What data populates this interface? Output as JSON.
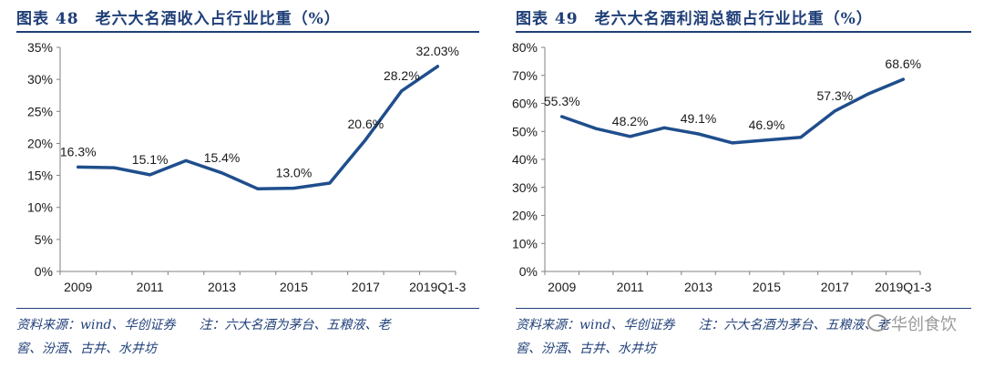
{
  "charts": [
    {
      "title": "图表 48　老六大名酒收入占行业比重（%）",
      "source": "资料来源：wind、华创证券",
      "note_line1": "注：六大名酒为茅台、五粮液、老",
      "note_line2": "窖、汾酒、古井、水井坊"
    },
    {
      "title": "图表 49　老六大名酒利润总额占行业比重（%）",
      "source": "资料来源：wind、华创证券",
      "note_line1": "注：六大名酒为茅台、五粮液、老",
      "note_line2": "窖、汾酒、古井、水井坊"
    }
  ],
  "watermark": "华创食饮",
  "colors": {
    "line": "#1f4e8c",
    "title": "#1f3f78",
    "axis": "#808080"
  },
  "chart_data": [
    {
      "type": "line",
      "title": "图表 48　老六大名酒收入占行业比重（%）",
      "categories": [
        "2009",
        "2010",
        "2011",
        "2012",
        "2013",
        "2014",
        "2015",
        "2016",
        "2017",
        "2018",
        "2019Q1-3"
      ],
      "tick_labels": [
        "2009",
        "2011",
        "2013",
        "2015",
        "2017",
        "2019Q1-3"
      ],
      "values": [
        16.3,
        16.2,
        15.1,
        17.3,
        15.4,
        12.9,
        13.0,
        13.8,
        20.6,
        28.2,
        32.03
      ],
      "data_labels": [
        {
          "index": 0,
          "text": "16.3%"
        },
        {
          "index": 2,
          "text": "15.1%"
        },
        {
          "index": 4,
          "text": "15.4%"
        },
        {
          "index": 6,
          "text": "13.0%"
        },
        {
          "index": 8,
          "text": "20.6%"
        },
        {
          "index": 9,
          "text": "28.2%"
        },
        {
          "index": 10,
          "text": "32.03%"
        }
      ],
      "ylim": [
        0,
        35
      ],
      "yticks": [
        "0%",
        "5%",
        "10%",
        "15%",
        "20%",
        "25%",
        "30%",
        "35%"
      ],
      "xlabel": "",
      "ylabel": "",
      "grid": false,
      "legend": "none"
    },
    {
      "type": "line",
      "title": "图表 49　老六大名酒利润总额占行业比重（%）",
      "categories": [
        "2009",
        "2010",
        "2011",
        "2012",
        "2013",
        "2014",
        "2015",
        "2016",
        "2017",
        "2018",
        "2019Q1-3"
      ],
      "tick_labels": [
        "2009",
        "2011",
        "2013",
        "2015",
        "2017",
        "2019Q1-3"
      ],
      "values": [
        55.3,
        51.0,
        48.2,
        51.3,
        49.1,
        45.9,
        46.9,
        47.9,
        57.3,
        63.5,
        68.6
      ],
      "data_labels": [
        {
          "index": 0,
          "text": "55.3%"
        },
        {
          "index": 2,
          "text": "48.2%"
        },
        {
          "index": 4,
          "text": "49.1%"
        },
        {
          "index": 6,
          "text": "46.9%"
        },
        {
          "index": 8,
          "text": "57.3%"
        },
        {
          "index": 10,
          "text": "68.6%"
        }
      ],
      "ylim": [
        0,
        80
      ],
      "yticks": [
        "0%",
        "10%",
        "20%",
        "30%",
        "40%",
        "50%",
        "60%",
        "70%",
        "80%"
      ],
      "xlabel": "",
      "ylabel": "",
      "grid": false,
      "legend": "none"
    }
  ]
}
